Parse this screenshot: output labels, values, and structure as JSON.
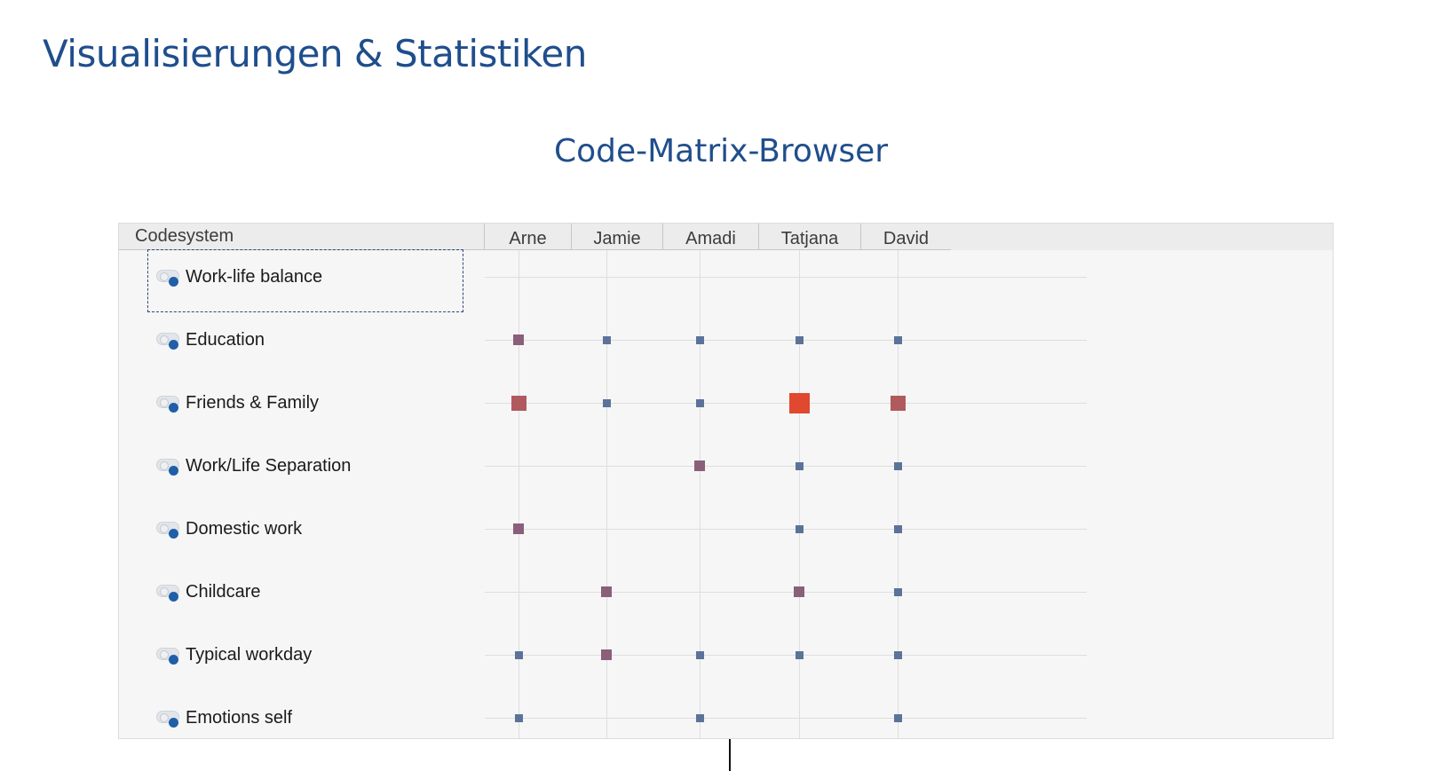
{
  "page": {
    "title": "Visualisierungen & Statistiken",
    "subtitle": "Code-Matrix-Browser"
  },
  "matrix": {
    "row_header": "Codesystem",
    "columns": [
      "Arne",
      "Jamie",
      "Amadi",
      "Tatjana",
      "David"
    ],
    "rows": [
      {
        "label": "Work-life balance",
        "cells": [
          0,
          0,
          0,
          0,
          0
        ]
      },
      {
        "label": "Education",
        "cells": [
          2,
          1,
          1,
          1,
          1
        ]
      },
      {
        "label": "Friends & Family",
        "cells": [
          3,
          1,
          1,
          4,
          3
        ]
      },
      {
        "label": "Work/Life Separation",
        "cells": [
          0,
          0,
          2,
          1,
          1
        ]
      },
      {
        "label": "Domestic work",
        "cells": [
          2,
          0,
          0,
          1,
          1
        ]
      },
      {
        "label": "Childcare",
        "cells": [
          0,
          2,
          0,
          2,
          1
        ]
      },
      {
        "label": "Typical workday",
        "cells": [
          1,
          2,
          1,
          1,
          1
        ]
      },
      {
        "label": "Emotions self",
        "cells": [
          1,
          0,
          1,
          0,
          1
        ]
      }
    ],
    "symbol_colors": {
      "1": "#5c7399",
      "2": "#8a5f79",
      "3": "#b05a5e",
      "4": "#e0482f"
    },
    "code_icon_color": "#1f5fa8"
  }
}
